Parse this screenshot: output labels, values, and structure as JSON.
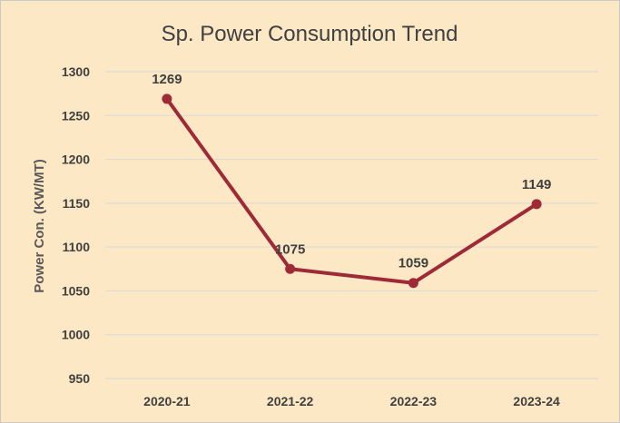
{
  "chart_data": {
    "type": "line",
    "title": "Sp. Power Consumption Trend",
    "xlabel": "",
    "ylabel": "Power Con. (KW/MT)",
    "categories": [
      "2020-21",
      "2021-22",
      "2022-23",
      "2023-24"
    ],
    "series": [
      {
        "values": [
          1269,
          1075,
          1059,
          1149
        ],
        "color": "#9e2a38"
      }
    ],
    "data_labels": [
      "1269",
      "1075",
      "1059",
      "1149"
    ],
    "ylim": [
      950,
      1300
    ],
    "yticks": [
      950,
      1000,
      1050,
      1100,
      1150,
      1200,
      1250,
      1300
    ],
    "grid": true,
    "legend": "none",
    "colors": {
      "background": "#fce8c4",
      "gridline": "#d9d9d9",
      "line": "#9e2a38",
      "text": "#404040"
    }
  }
}
